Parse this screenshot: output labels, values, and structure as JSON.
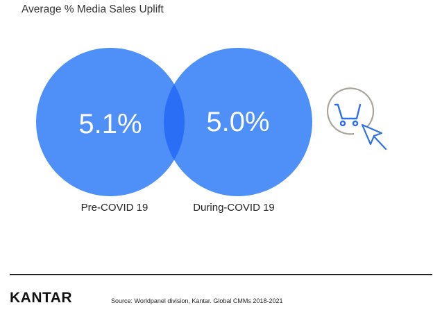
{
  "title": "Average % Media Sales Uplift",
  "colors": {
    "circle": "#4f8ff8",
    "overlap": "#2a6ef5",
    "icon_ring": "#a9a59c",
    "icon_stroke": "#2e6fe8"
  },
  "chart_data": {
    "type": "venn",
    "title": "Average % Media Sales Uplift",
    "sets": [
      {
        "label": "Pre-COVID 19",
        "value_label": "5.1%",
        "value": 5.1
      },
      {
        "label": "During-COVID 19",
        "value_label": "5.0%",
        "value": 5.0
      }
    ]
  },
  "icon": {
    "name": "shopping-cart-click-icon"
  },
  "footer": {
    "logo": "KANTAR",
    "source": "Source: Worldpanel division, Kantar. Global CMMs 2018-2021"
  }
}
